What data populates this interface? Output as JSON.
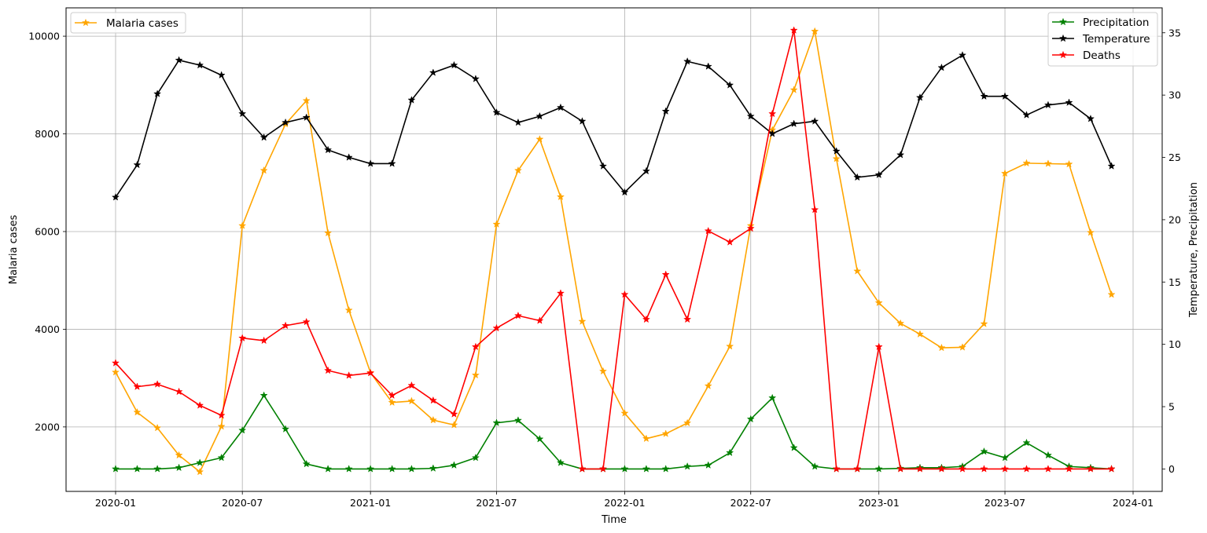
{
  "chart_data": {
    "type": "line",
    "x_dates": [
      "2020-01",
      "2020-02",
      "2020-03",
      "2020-04",
      "2020-05",
      "2020-06",
      "2020-07",
      "2020-08",
      "2020-09",
      "2020-10",
      "2020-11",
      "2020-12",
      "2021-01",
      "2021-02",
      "2021-03",
      "2021-04",
      "2021-05",
      "2021-06",
      "2021-07",
      "2021-08",
      "2021-09",
      "2021-10",
      "2021-11",
      "2021-12",
      "2022-01",
      "2022-02",
      "2022-03",
      "2022-04",
      "2022-05",
      "2022-06",
      "2022-07",
      "2022-08",
      "2022-09",
      "2022-10",
      "2022-11",
      "2022-12",
      "2023-01",
      "2023-02",
      "2023-03",
      "2023-04",
      "2023-05",
      "2023-06",
      "2023-07",
      "2023-08",
      "2023-09",
      "2023-10",
      "2023-11",
      "2023-12"
    ],
    "xlabel": "Time",
    "x_ticks": [
      "2020-01",
      "2020-07",
      "2021-01",
      "2021-07",
      "2022-01",
      "2022-07",
      "2023-01",
      "2023-07",
      "2024-01"
    ],
    "left_axis": {
      "label": "Malaria cases",
      "ylim": [
        680,
        10580
      ],
      "ticks": [
        2000,
        4000,
        6000,
        8000,
        10000
      ]
    },
    "right_axis": {
      "label": "Temperature, Precipitation",
      "ylim": [
        -1.8,
        37
      ],
      "ticks": [
        0,
        5,
        10,
        15,
        20,
        25,
        30,
        35
      ]
    },
    "grid": true,
    "left_legend_placement": "top-left",
    "right_legend_placement": "top-right",
    "series": [
      {
        "name": "Malaria cases",
        "axis": "left",
        "color": "#ffa500",
        "marker": "star",
        "values": [
          3120,
          2300,
          1980,
          1420,
          1080,
          2010,
          6120,
          7250,
          8200,
          8680,
          5970,
          4390,
          3110,
          2500,
          2530,
          2140,
          2040,
          3060,
          6150,
          7250,
          7890,
          6710,
          4160,
          3140,
          2280,
          1760,
          1860,
          2080,
          2840,
          3650,
          6120,
          8080,
          8900,
          10100,
          7490,
          5190,
          4540,
          4120,
          3900,
          3620,
          3630,
          4110,
          7190,
          7400,
          7390,
          7380,
          5980,
          4710
        ]
      },
      {
        "name": "Precipitation",
        "axis": "right",
        "color": "#008000",
        "marker": "star",
        "values": [
          0,
          0,
          0,
          0.1,
          0.5,
          0.9,
          3.1,
          5.9,
          3.2,
          0.4,
          0,
          0,
          0,
          0,
          0,
          0.05,
          0.3,
          0.9,
          3.7,
          3.9,
          2.4,
          0.5,
          0,
          0,
          0,
          0,
          0,
          0.2,
          0.3,
          1.3,
          4.0,
          5.7,
          1.7,
          0.2,
          0,
          0,
          0,
          0.05,
          0.1,
          0.1,
          0.2,
          1.4,
          0.9,
          2.1,
          1.1,
          0.2,
          0.1,
          0
        ]
      },
      {
        "name": "Temperature",
        "axis": "right",
        "color": "#000000",
        "marker": "star",
        "values": [
          21.8,
          24.4,
          30.1,
          32.8,
          32.4,
          31.6,
          28.5,
          26.6,
          27.8,
          28.2,
          25.6,
          25.0,
          24.5,
          24.5,
          29.6,
          31.8,
          32.4,
          31.3,
          28.6,
          27.8,
          28.3,
          29.0,
          27.9,
          24.3,
          22.2,
          23.9,
          28.7,
          32.7,
          32.3,
          30.8,
          28.3,
          26.9,
          27.7,
          27.9,
          25.5,
          23.4,
          23.6,
          25.2,
          29.8,
          32.2,
          33.2,
          29.9,
          29.9,
          28.4,
          29.2,
          29.4,
          28.1,
          24.3
        ]
      },
      {
        "name": "Deaths",
        "axis": "right",
        "color": "#ff0000",
        "marker": "star",
        "values": [
          8.5,
          6.6,
          6.8,
          6.2,
          5.1,
          4.3,
          10.5,
          10.3,
          11.5,
          11.8,
          7.9,
          7.5,
          7.7,
          5.9,
          6.7,
          5.5,
          4.4,
          9.8,
          11.3,
          12.3,
          11.9,
          14.1,
          0,
          0,
          14.0,
          12.0,
          15.6,
          12.0,
          19.1,
          18.2,
          19.3,
          28.5,
          35.2,
          20.8,
          0,
          0,
          9.8,
          0,
          0,
          0,
          0,
          0,
          0,
          0,
          0,
          0,
          0,
          0
        ]
      }
    ]
  }
}
